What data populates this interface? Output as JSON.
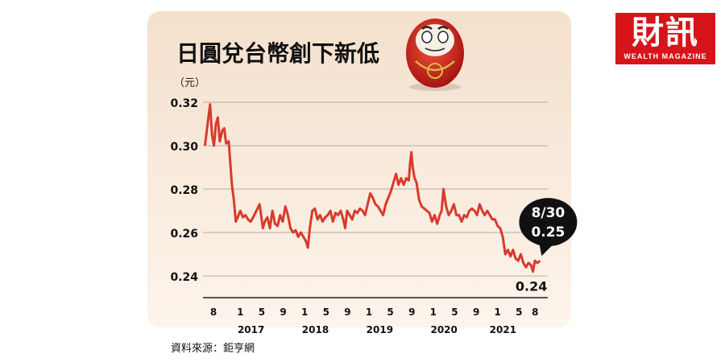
{
  "brand": {
    "main": "財訊",
    "sub": "WEALTH MAGAZINE"
  },
  "source": "資料來源：鉅亨網",
  "chart_data": {
    "type": "line",
    "title": "日圓兌台幣創下新低",
    "ylabel": "（元）",
    "ylim": [
      0.23,
      0.323
    ],
    "yticks": [
      0.24,
      0.26,
      0.28,
      0.3,
      0.32
    ],
    "month_ticks": [
      {
        "x": 2016.583,
        "label": "8"
      },
      {
        "x": 2017.0,
        "label": "1"
      },
      {
        "x": 2017.333,
        "label": "5"
      },
      {
        "x": 2017.667,
        "label": "9"
      },
      {
        "x": 2018.0,
        "label": "1"
      },
      {
        "x": 2018.333,
        "label": "5"
      },
      {
        "x": 2018.667,
        "label": "9"
      },
      {
        "x": 2019.0,
        "label": "1"
      },
      {
        "x": 2019.333,
        "label": "5"
      },
      {
        "x": 2019.667,
        "label": "9"
      },
      {
        "x": 2020.0,
        "label": "1"
      },
      {
        "x": 2020.333,
        "label": "5"
      },
      {
        "x": 2020.667,
        "label": "9"
      },
      {
        "x": 2021.0,
        "label": "1"
      },
      {
        "x": 2021.333,
        "label": "5"
      },
      {
        "x": 2021.583,
        "label": "8"
      }
    ],
    "year_labels": [
      {
        "x": 2017.167,
        "label": "2017"
      },
      {
        "x": 2018.167,
        "label": "2018"
      },
      {
        "x": 2019.167,
        "label": "2019"
      },
      {
        "x": 2020.167,
        "label": "2020"
      },
      {
        "x": 2021.083,
        "label": "2021"
      }
    ],
    "series": [
      {
        "color": "#d93a2b",
        "points": [
          [
            2016.45,
            0.3
          ],
          [
            2016.5,
            0.312
          ],
          [
            2016.53,
            0.319
          ],
          [
            2016.56,
            0.305
          ],
          [
            2016.59,
            0.3
          ],
          [
            2016.62,
            0.31
          ],
          [
            2016.65,
            0.313
          ],
          [
            2016.68,
            0.302
          ],
          [
            2016.72,
            0.307
          ],
          [
            2016.75,
            0.308
          ],
          [
            2016.78,
            0.301
          ],
          [
            2016.82,
            0.302
          ],
          [
            2016.84,
            0.294
          ],
          [
            2016.87,
            0.282
          ],
          [
            2016.9,
            0.275
          ],
          [
            2016.93,
            0.265
          ],
          [
            2016.96,
            0.267
          ],
          [
            2017.0,
            0.27
          ],
          [
            2017.04,
            0.267
          ],
          [
            2017.08,
            0.268
          ],
          [
            2017.12,
            0.266
          ],
          [
            2017.16,
            0.265
          ],
          [
            2017.2,
            0.267
          ],
          [
            2017.25,
            0.27
          ],
          [
            2017.3,
            0.273
          ],
          [
            2017.35,
            0.262
          ],
          [
            2017.38,
            0.265
          ],
          [
            2017.42,
            0.267
          ],
          [
            2017.46,
            0.262
          ],
          [
            2017.5,
            0.27
          ],
          [
            2017.54,
            0.264
          ],
          [
            2017.58,
            0.263
          ],
          [
            2017.62,
            0.268
          ],
          [
            2017.66,
            0.265
          ],
          [
            2017.7,
            0.272
          ],
          [
            2017.74,
            0.268
          ],
          [
            2017.78,
            0.262
          ],
          [
            2017.82,
            0.26
          ],
          [
            2017.86,
            0.261
          ],
          [
            2017.9,
            0.258
          ],
          [
            2017.94,
            0.26
          ],
          [
            2017.98,
            0.258
          ],
          [
            2018.02,
            0.256
          ],
          [
            2018.05,
            0.253
          ],
          [
            2018.08,
            0.262
          ],
          [
            2018.12,
            0.27
          ],
          [
            2018.16,
            0.271
          ],
          [
            2018.2,
            0.266
          ],
          [
            2018.24,
            0.268
          ],
          [
            2018.28,
            0.265
          ],
          [
            2018.32,
            0.267
          ],
          [
            2018.36,
            0.268
          ],
          [
            2018.4,
            0.27
          ],
          [
            2018.44,
            0.265
          ],
          [
            2018.48,
            0.269
          ],
          [
            2018.52,
            0.268
          ],
          [
            2018.56,
            0.27
          ],
          [
            2018.6,
            0.266
          ],
          [
            2018.63,
            0.262
          ],
          [
            2018.66,
            0.27
          ],
          [
            2018.7,
            0.268
          ],
          [
            2018.74,
            0.266
          ],
          [
            2018.78,
            0.27
          ],
          [
            2018.82,
            0.269
          ],
          [
            2018.86,
            0.271
          ],
          [
            2018.9,
            0.27
          ],
          [
            2018.94,
            0.268
          ],
          [
            2018.98,
            0.273
          ],
          [
            2019.02,
            0.278
          ],
          [
            2019.06,
            0.276
          ],
          [
            2019.1,
            0.273
          ],
          [
            2019.14,
            0.272
          ],
          [
            2019.18,
            0.27
          ],
          [
            2019.22,
            0.268
          ],
          [
            2019.26,
            0.273
          ],
          [
            2019.3,
            0.276
          ],
          [
            2019.34,
            0.279
          ],
          [
            2019.38,
            0.283
          ],
          [
            2019.42,
            0.287
          ],
          [
            2019.46,
            0.282
          ],
          [
            2019.5,
            0.285
          ],
          [
            2019.54,
            0.282
          ],
          [
            2019.58,
            0.285
          ],
          [
            2019.62,
            0.284
          ],
          [
            2019.64,
            0.292
          ],
          [
            2019.66,
            0.297
          ],
          [
            2019.68,
            0.29
          ],
          [
            2019.71,
            0.285
          ],
          [
            2019.74,
            0.283
          ],
          [
            2019.78,
            0.275
          ],
          [
            2019.82,
            0.272
          ],
          [
            2019.86,
            0.271
          ],
          [
            2019.9,
            0.27
          ],
          [
            2019.94,
            0.269
          ],
          [
            2019.98,
            0.265
          ],
          [
            2020.02,
            0.268
          ],
          [
            2020.06,
            0.264
          ],
          [
            2020.1,
            0.268
          ],
          [
            2020.13,
            0.27
          ],
          [
            2020.16,
            0.28
          ],
          [
            2020.2,
            0.272
          ],
          [
            2020.24,
            0.268
          ],
          [
            2020.28,
            0.27
          ],
          [
            2020.32,
            0.273
          ],
          [
            2020.36,
            0.268
          ],
          [
            2020.4,
            0.268
          ],
          [
            2020.44,
            0.265
          ],
          [
            2020.48,
            0.268
          ],
          [
            2020.52,
            0.267
          ],
          [
            2020.56,
            0.27
          ],
          [
            2020.6,
            0.271
          ],
          [
            2020.64,
            0.27
          ],
          [
            2020.68,
            0.268
          ],
          [
            2020.72,
            0.273
          ],
          [
            2020.76,
            0.27
          ],
          [
            2020.8,
            0.268
          ],
          [
            2020.84,
            0.27
          ],
          [
            2020.88,
            0.268
          ],
          [
            2020.92,
            0.266
          ],
          [
            2020.96,
            0.266
          ],
          [
            2021.0,
            0.263
          ],
          [
            2021.04,
            0.262
          ],
          [
            2021.08,
            0.258
          ],
          [
            2021.12,
            0.25
          ],
          [
            2021.16,
            0.252
          ],
          [
            2021.2,
            0.249
          ],
          [
            2021.24,
            0.252
          ],
          [
            2021.28,
            0.248
          ],
          [
            2021.32,
            0.247
          ],
          [
            2021.36,
            0.25
          ],
          [
            2021.4,
            0.246
          ],
          [
            2021.44,
            0.244
          ],
          [
            2021.48,
            0.246
          ],
          [
            2021.52,
            0.245
          ],
          [
            2021.55,
            0.242
          ],
          [
            2021.58,
            0.247
          ],
          [
            2021.62,
            0.246
          ],
          [
            2021.66,
            0.247
          ]
        ]
      }
    ],
    "annotations": [
      {
        "label_lines": [
          "8/30",
          "0.25"
        ],
        "x": 2021.66,
        "y": 0.247,
        "style": "callout"
      },
      {
        "label": "0.24",
        "x": 2021.55,
        "y": 0.242,
        "style": "text"
      }
    ]
  }
}
